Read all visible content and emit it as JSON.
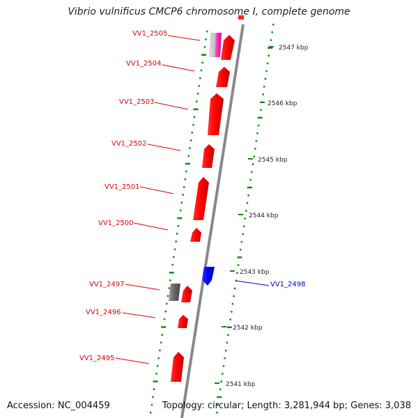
{
  "header": {
    "title": "Vibrio vulnificus CMCP6 chromosome I, complete genome"
  },
  "footer": {
    "accession": "Accession: NC_004459",
    "topology": "Topology: circular; Length: 3,281,944 bp; Genes: 3,038"
  },
  "scale": {
    "ticks": [
      "2547 kbp",
      "2546 kbp",
      "2545 kbp",
      "2544 kbp",
      "2543 kbp",
      "2542 kbp",
      "2541 kbp"
    ]
  },
  "genes": [
    {
      "label": "VV1_2505",
      "strand": "+",
      "color": "#ff0000"
    },
    {
      "label": "VV1_2504",
      "strand": "+",
      "color": "#ff0000"
    },
    {
      "label": "VV1_2503",
      "strand": "+",
      "color": "#ff0000"
    },
    {
      "label": "VV1_2502",
      "strand": "+",
      "color": "#ff0000"
    },
    {
      "label": "VV1_2501",
      "strand": "+",
      "color": "#ff0000"
    },
    {
      "label": "VV1_2500",
      "strand": "+",
      "color": "#ff0000"
    },
    {
      "label": "VV1_2498",
      "strand": "-",
      "color": "#0000ff"
    },
    {
      "label": "VV1_2497",
      "strand": "+",
      "color": "#ff0000"
    },
    {
      "label": "VV1_2496",
      "strand": "+",
      "color": "#ff0000"
    },
    {
      "label": "VV1_2495",
      "strand": "+",
      "color": "#ff0000"
    }
  ],
  "colors": {
    "forward_gene": "#ff0000",
    "reverse_gene": "#0000ff",
    "backbone": "#888888",
    "gc_track": "#118811",
    "rna_gene": "#666666",
    "label_forward": "#dd0000",
    "label_reverse": "#0000cc"
  }
}
